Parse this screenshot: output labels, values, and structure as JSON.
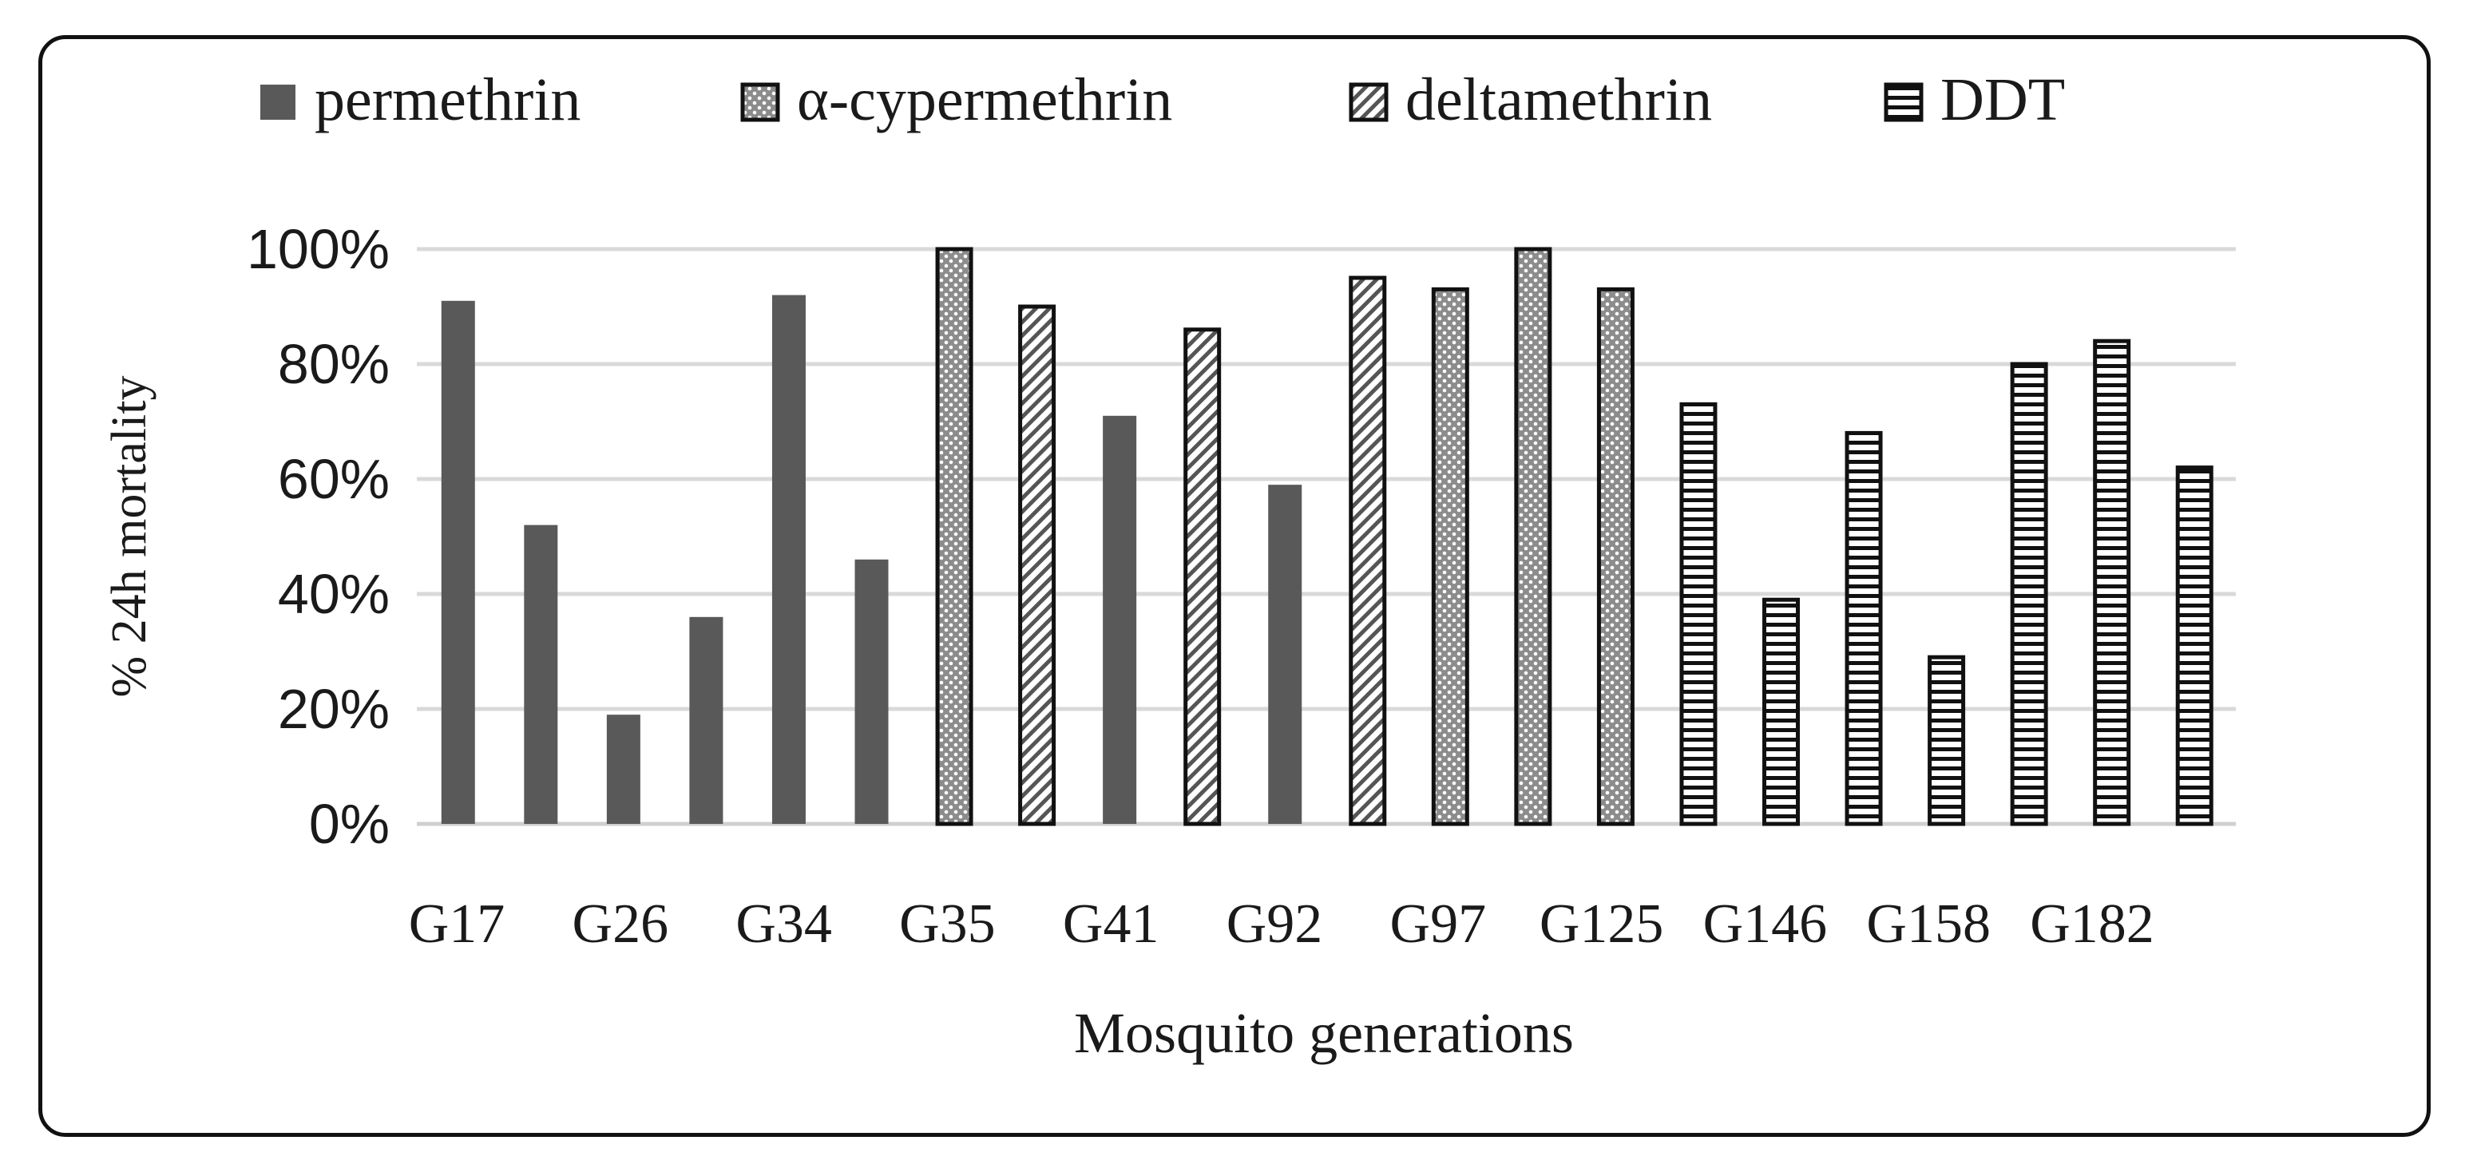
{
  "chart_data": {
    "type": "bar",
    "title": "",
    "xlabel": "Mosquito generations",
    "ylabel": "% 24h mortality",
    "ylim": [
      0,
      100
    ],
    "y_ticks": [
      "0%",
      "20%",
      "40%",
      "60%",
      "80%",
      "100%"
    ],
    "y_tick_values": [
      0,
      20,
      40,
      60,
      80,
      100
    ],
    "grid": true,
    "legend_position": "top",
    "x_tick_labels": [
      "G17",
      "G26",
      "G34",
      "G35",
      "G41",
      "G92",
      "G97",
      "G125",
      "G146",
      "G158",
      "G182"
    ],
    "legend": [
      {
        "name": "permethrin",
        "pattern": "solid"
      },
      {
        "name": "α-cypermethrin",
        "pattern": "dots"
      },
      {
        "name": "deltamethrin",
        "pattern": "diagonal"
      },
      {
        "name": "DDT",
        "pattern": "horizontal"
      }
    ],
    "bars": [
      {
        "series": "permethrin",
        "value": 91
      },
      {
        "series": "permethrin",
        "value": 52
      },
      {
        "series": "permethrin",
        "value": 19
      },
      {
        "series": "permethrin",
        "value": 36
      },
      {
        "series": "permethrin",
        "value": 92
      },
      {
        "series": "permethrin",
        "value": 46
      },
      {
        "series": "α-cypermethrin",
        "value": 100
      },
      {
        "series": "deltamethrin",
        "value": 90
      },
      {
        "series": "permethrin",
        "value": 71
      },
      {
        "series": "deltamethrin",
        "value": 86
      },
      {
        "series": "permethrin",
        "value": 59
      },
      {
        "series": "deltamethrin",
        "value": 95
      },
      {
        "series": "α-cypermethrin",
        "value": 93
      },
      {
        "series": "α-cypermethrin",
        "value": 100
      },
      {
        "series": "α-cypermethrin",
        "value": 93
      },
      {
        "series": "DDT",
        "value": 73
      },
      {
        "series": "DDT",
        "value": 39
      },
      {
        "series": "DDT",
        "value": 68
      },
      {
        "series": "DDT",
        "value": 29
      },
      {
        "series": "DDT",
        "value": 80
      },
      {
        "series": "DDT",
        "value": 84
      },
      {
        "series": "DDT",
        "value": 62
      }
    ],
    "colors": {
      "permethrin": "#595959",
      "dots_fill": "#8c8c8c",
      "outline": "#111111",
      "grid": "#d9d9d9",
      "text": "#1a1a1a"
    }
  }
}
